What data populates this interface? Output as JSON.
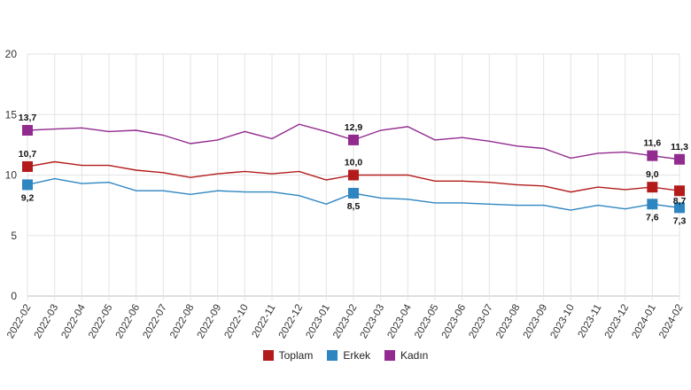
{
  "chart_data": {
    "type": "line",
    "title": "",
    "xlabel": "",
    "ylabel": "",
    "ylim": [
      0,
      20
    ],
    "yticks": [
      "0",
      "5",
      "10",
      "15",
      "20"
    ],
    "grid": true,
    "legend_position": "bottom",
    "categories": [
      "2022-02",
      "2022-03",
      "2022-04",
      "2022-05",
      "2022-06",
      "2022-07",
      "2022-08",
      "2022-09",
      "2022-10",
      "2022-11",
      "2022-12",
      "2023-01",
      "2023-02",
      "2023-03",
      "2023-04",
      "2023-05",
      "2023-06",
      "2023-07",
      "2023-08",
      "2023-09",
      "2023-10",
      "2023-11",
      "2023-12",
      "2024-01",
      "2024-02"
    ],
    "series": [
      {
        "name": "Toplam",
        "color": "#b31b1b",
        "values": [
          10.7,
          11.1,
          10.8,
          10.8,
          10.4,
          10.2,
          9.8,
          10.1,
          10.3,
          10.1,
          10.3,
          9.6,
          10.0,
          10.0,
          10.0,
          9.5,
          9.5,
          9.4,
          9.2,
          9.1,
          8.6,
          9.0,
          8.8,
          9.0,
          8.7
        ],
        "marked_labels": {
          "0": "10,7",
          "12": "10,0",
          "23": "9,0",
          "24": "8,7"
        }
      },
      {
        "name": "Erkek",
        "color": "#2e86c1",
        "values": [
          9.2,
          9.7,
          9.3,
          9.4,
          8.7,
          8.7,
          8.4,
          8.7,
          8.6,
          8.6,
          8.3,
          7.6,
          8.5,
          8.1,
          8.0,
          7.7,
          7.7,
          7.6,
          7.5,
          7.5,
          7.1,
          7.5,
          7.2,
          7.6,
          7.3
        ],
        "marked_labels": {
          "0": "9,2",
          "12": "8,5",
          "23": "7,6",
          "24": "7,3"
        }
      },
      {
        "name": "Kadın",
        "color": "#922b8f",
        "values": [
          13.7,
          13.8,
          13.9,
          13.6,
          13.7,
          13.3,
          12.6,
          12.9,
          13.6,
          13.0,
          14.2,
          13.6,
          12.9,
          13.7,
          14.0,
          12.9,
          13.1,
          12.8,
          12.4,
          12.2,
          11.4,
          11.8,
          11.9,
          11.6,
          11.3
        ],
        "marked_labels": {
          "0": "13,7",
          "12": "12,9",
          "23": "11,6",
          "24": "11,3"
        }
      }
    ]
  }
}
